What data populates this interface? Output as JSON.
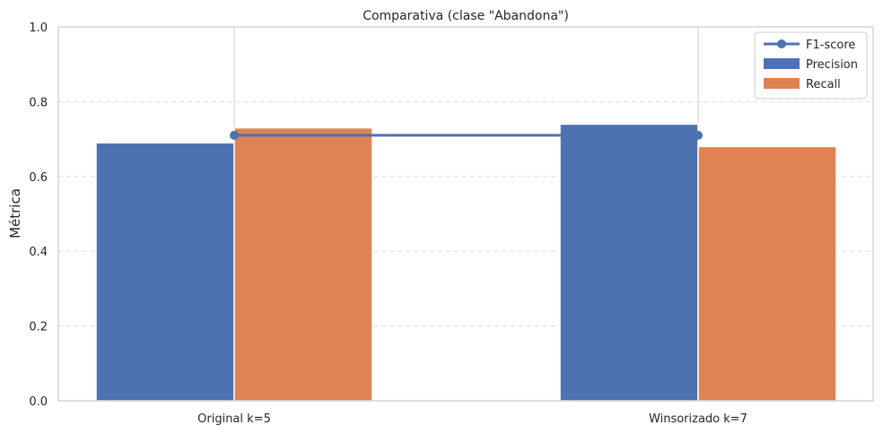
{
  "chart_data": {
    "type": "bar",
    "title": "Comparativa (clase \"Abandona\")",
    "xlabel": "",
    "ylabel": "Métrica",
    "categories": [
      "Original k=5",
      "Winsorizado k=7"
    ],
    "series": [
      {
        "name": "Precision",
        "kind": "bar",
        "color": "#4c72b0",
        "values": [
          0.69,
          0.74
        ]
      },
      {
        "name": "Recall",
        "kind": "bar",
        "color": "#dd8452",
        "values": [
          0.73,
          0.68
        ]
      },
      {
        "name": "F1-score",
        "kind": "line",
        "color": "#4c72b0",
        "values": [
          0.71,
          0.71
        ]
      }
    ],
    "ylim": [
      0,
      1.0
    ],
    "yticks": [
      "0.0",
      "0.2",
      "0.4",
      "0.6",
      "0.8",
      "1.0"
    ],
    "grid": "y-dashed",
    "legend": "top-right"
  }
}
